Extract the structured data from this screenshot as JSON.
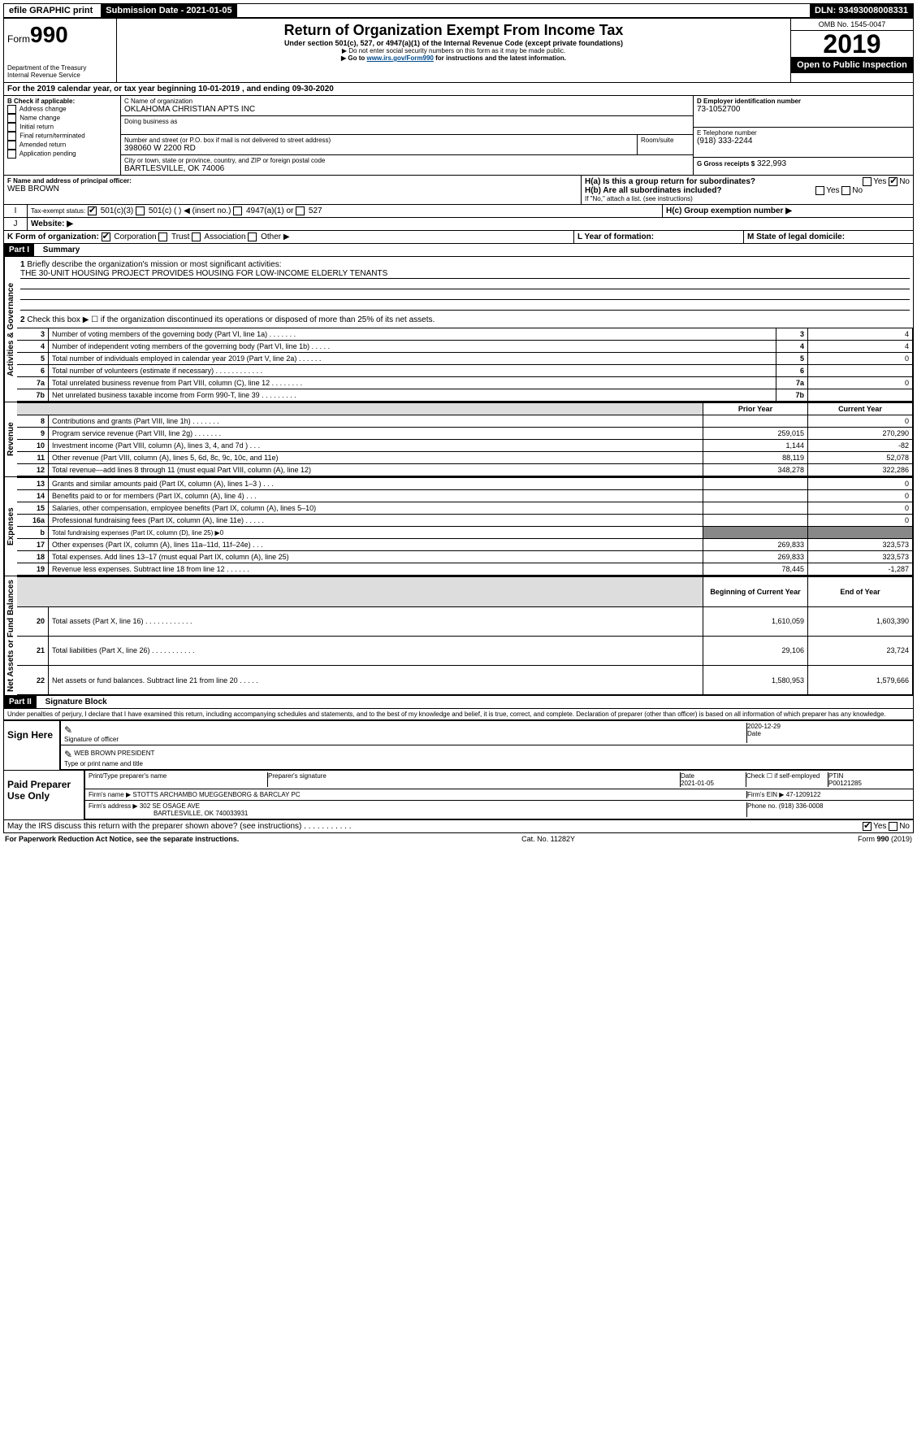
{
  "topbar": {
    "efile": "efile GRAPHIC print",
    "submission": "Submission Date - 2021-01-05",
    "dln": "DLN: 93493008008331"
  },
  "header": {
    "form_prefix": "Form",
    "form_number": "990",
    "dept": "Department of the Treasury\nInternal Revenue Service",
    "title": "Return of Organization Exempt From Income Tax",
    "subtitle": "Under section 501(c), 527, or 4947(a)(1) of the Internal Revenue Code (except private foundations)",
    "note1": "▶ Do not enter social security numbers on this form as it may be made public.",
    "note2_a": "▶ Go to ",
    "note2_link": "www.irs.gov/Form990",
    "note2_b": " for instructions and the latest information.",
    "omb": "OMB No. 1545-0047",
    "year": "2019",
    "open": "Open to Public Inspection"
  },
  "line_a": "For the 2019 calendar year, or tax year beginning 10-01-2019   , and ending 09-30-2020",
  "section_b": {
    "label": "B Check if applicable:",
    "opts": [
      "Address change",
      "Name change",
      "Initial return",
      "Final return/terminated",
      "Amended return",
      "Application pending"
    ]
  },
  "section_c": {
    "label": "C Name of organization",
    "name": "OKLAHOMA CHRISTIAN APTS INC",
    "dba": "Doing business as",
    "addr_label": "Number and street (or P.O. box if mail is not delivered to street address)",
    "room": "Room/suite",
    "addr": "398060 W 2200 RD",
    "city_label": "City or town, state or province, country, and ZIP or foreign postal code",
    "city": "BARTLESVILLE, OK  74006"
  },
  "section_d": {
    "label": "D Employer identification number",
    "val": "73-1052700"
  },
  "section_e": {
    "label": "E Telephone number",
    "val": "(918) 333-2244"
  },
  "section_g": {
    "label": "G Gross receipts $",
    "val": "322,993"
  },
  "section_f": {
    "label": "F Name and address of principal officer:",
    "name": "WEB BROWN"
  },
  "section_h": {
    "a": "H(a)  Is this a group return for subordinates?",
    "b": "H(b)  Are all subordinates included?",
    "note": "If \"No,\" attach a list. (see instructions)",
    "c": "H(c)  Group exemption number ▶",
    "yes": "Yes",
    "no": "No"
  },
  "section_i": {
    "label": "Tax-exempt status:",
    "opts": [
      "501(c)(3)",
      "501(c) (  ) ◀ (insert no.)",
      "4947(a)(1) or",
      "527"
    ]
  },
  "section_j": "Website: ▶",
  "section_k": {
    "label": "K Form of organization:",
    "opts": [
      "Corporation",
      "Trust",
      "Association",
      "Other ▶"
    ]
  },
  "section_l": "L Year of formation:",
  "section_m": "M State of legal domicile:",
  "part1": {
    "header": "Part I",
    "title": "Summary",
    "q1": "Briefly describe the organization's mission or most significant activities:",
    "mission": "THE 30-UNIT HOUSING PROJECT PROVIDES HOUSING FOR LOW-INCOME ELDERLY TENANTS",
    "q2": "Check this box ▶ ☐  if the organization discontinued its operations or disposed of more than 25% of its net assets.",
    "tabs": {
      "gov": "Activities & Governance",
      "rev": "Revenue",
      "exp": "Expenses",
      "net": "Net Assets or Fund Balances"
    },
    "col_prior": "Prior Year",
    "col_current": "Current Year",
    "col_begin": "Beginning of Current Year",
    "col_end": "End of Year",
    "rows_gov": [
      {
        "n": "3",
        "t": "Number of voting members of the governing body (Part VI, line 1a)  .  .  .  .  .  .  .",
        "v": "4"
      },
      {
        "n": "4",
        "t": "Number of independent voting members of the governing body (Part VI, line 1b)  .  .  .  .  .",
        "v": "4"
      },
      {
        "n": "5",
        "t": "Total number of individuals employed in calendar year 2019 (Part V, line 2a)  .  .  .  .  .  .",
        "v": "0"
      },
      {
        "n": "6",
        "t": "Total number of volunteers (estimate if necessary)  .  .  .  .  .  .  .  .  .  .  .  .",
        "v": ""
      },
      {
        "n": "7a",
        "t": "Total unrelated business revenue from Part VIII, column (C), line 12  .  .  .  .  .  .  .  .",
        "v": "0"
      },
      {
        "n": "7b",
        "t": "Net unrelated business taxable income from Form 990-T, line 39  .  .  .  .  .  .  .  .  .",
        "v": ""
      }
    ],
    "rows_rev": [
      {
        "n": "8",
        "t": "Contributions and grants (Part VIII, line 1h)  .  .  .  .  .  .  .",
        "p": "",
        "c": "0"
      },
      {
        "n": "9",
        "t": "Program service revenue (Part VIII, line 2g)  .  .  .  .  .  .  .",
        "p": "259,015",
        "c": "270,290"
      },
      {
        "n": "10",
        "t": "Investment income (Part VIII, column (A), lines 3, 4, and 7d )  .  .  .",
        "p": "1,144",
        "c": "-82"
      },
      {
        "n": "11",
        "t": "Other revenue (Part VIII, column (A), lines 5, 6d, 8c, 9c, 10c, and 11e)",
        "p": "88,119",
        "c": "52,078"
      },
      {
        "n": "12",
        "t": "Total revenue—add lines 8 through 11 (must equal Part VIII, column (A), line 12)",
        "p": "348,278",
        "c": "322,286"
      }
    ],
    "rows_exp": [
      {
        "n": "13",
        "t": "Grants and similar amounts paid (Part IX, column (A), lines 1–3 )  .  .  .",
        "p": "",
        "c": "0"
      },
      {
        "n": "14",
        "t": "Benefits paid to or for members (Part IX, column (A), line 4)  .  .  .",
        "p": "",
        "c": "0"
      },
      {
        "n": "15",
        "t": "Salaries, other compensation, employee benefits (Part IX, column (A), lines 5–10)",
        "p": "",
        "c": "0"
      },
      {
        "n": "16a",
        "t": "Professional fundraising fees (Part IX, column (A), line 11e)  .  .  .  .  .",
        "p": "",
        "c": "0"
      },
      {
        "n": "b",
        "t": "Total fundraising expenses (Part IX, column (D), line 25) ▶0",
        "p": "—",
        "c": "—"
      },
      {
        "n": "17",
        "t": "Other expenses (Part IX, column (A), lines 11a–11d, 11f–24e)  .  .  .",
        "p": "269,833",
        "c": "323,573"
      },
      {
        "n": "18",
        "t": "Total expenses. Add lines 13–17 (must equal Part IX, column (A), line 25)",
        "p": "269,833",
        "c": "323,573"
      },
      {
        "n": "19",
        "t": "Revenue less expenses. Subtract line 18 from line 12  .  .  .  .  .  .",
        "p": "78,445",
        "c": "-1,287"
      }
    ],
    "rows_net": [
      {
        "n": "20",
        "t": "Total assets (Part X, line 16)  .  .  .  .  .  .  .  .  .  .  .  .",
        "p": "1,610,059",
        "c": "1,603,390"
      },
      {
        "n": "21",
        "t": "Total liabilities (Part X, line 26)  .  .  .  .  .  .  .  .  .  .  .",
        "p": "29,106",
        "c": "23,724"
      },
      {
        "n": "22",
        "t": "Net assets or fund balances. Subtract line 21 from line 20  .  .  .  .  .",
        "p": "1,580,953",
        "c": "1,579,666"
      }
    ]
  },
  "part2": {
    "header": "Part II",
    "title": "Signature Block",
    "perjury": "Under penalties of perjury, I declare that I have examined this return, including accompanying schedules and statements, and to the best of my knowledge and belief, it is true, correct, and complete. Declaration of preparer (other than officer) is based on all information of which preparer has any knowledge.",
    "sign_here": "Sign Here",
    "sig_officer": "Signature of officer",
    "sig_date": "2020-12-29",
    "date": "Date",
    "officer_name": "WEB BROWN  PRESIDENT",
    "type_name": "Type or print name and title",
    "paid": "Paid Preparer Use Only",
    "prep_name_label": "Print/Type preparer's name",
    "prep_sig_label": "Preparer's signature",
    "prep_date_label": "Date",
    "prep_date": "2021-01-05",
    "check_self": "Check ☐ if self-employed",
    "ptin_label": "PTIN",
    "ptin": "P00121285",
    "firm_name_label": "Firm's name    ▶",
    "firm_name": "STOTTS ARCHAMBO MUEGGENBORG & BARCLAY PC",
    "firm_ein_label": "Firm's EIN ▶",
    "firm_ein": "47-1209122",
    "firm_addr_label": "Firm's address ▶",
    "firm_addr": "302 SE OSAGE AVE",
    "firm_city": "BARTLESVILLE, OK  740033931",
    "phone_label": "Phone no.",
    "phone": "(918) 336-0008",
    "discuss": "May the IRS discuss this return with the preparer shown above? (see instructions)   .  .  .  .  .  .  .  .  .  .  ."
  },
  "footer": {
    "left": "For Paperwork Reduction Act Notice, see the separate instructions.",
    "mid": "Cat. No. 11282Y",
    "right": "Form 990 (2019)"
  }
}
